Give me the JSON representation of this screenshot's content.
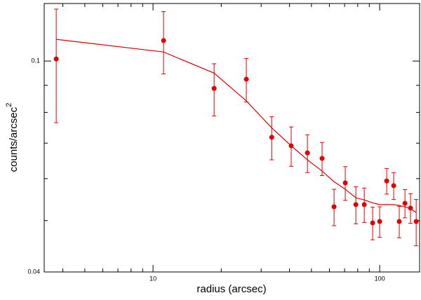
{
  "chart_data": {
    "type": "scatter",
    "xlabel": "radius (arcsec)",
    "ylabel": {
      "text": "counts/arcsec",
      "superscript": "2"
    },
    "color": "#e00000",
    "x": [
      3.74,
      11.13,
      18.6,
      25.8,
      33.4,
      40.7,
      48.0,
      55.7,
      62.9,
      70.5,
      78.5,
      85.5,
      93.1,
      100,
      107.4,
      115.3,
      122,
      129.3,
      136.8,
      144.9
    ],
    "values": [
      0.1009,
      0.1093,
      0.0888,
      0.0924,
      0.0718,
      0.0692,
      0.0671,
      0.0655,
      0.0531,
      0.0589,
      0.0536,
      0.0536,
      0.0495,
      0.0498,
      0.0594,
      0.0582,
      0.0498,
      0.0539,
      0.0528,
      0.0498
    ],
    "errors": [
      0.0244,
      0.0147,
      0.01,
      0.0087,
      0.0067,
      0.0059,
      0.0055,
      0.0047,
      0.0042,
      0.0043,
      0.0043,
      0.004,
      0.0035,
      0.0033,
      0.0033,
      0.0034,
      0.0034,
      0.0033,
      0.0034,
      0.005
    ],
    "model_values": [
      0.1099,
      0.104,
      0.0949,
      0.0841,
      0.0748,
      0.0692,
      0.0651,
      0.062,
      0.0592,
      0.0573,
      0.0552,
      0.0547,
      0.054,
      0.0536,
      0.0536,
      0.0536,
      0.0534,
      0.0531,
      0.0526,
      0.0518
    ],
    "xlog": true,
    "ylog": true,
    "xlim": [
      3.31,
      150
    ],
    "ylim": [
      0.04,
      0.1284
    ],
    "xticks": [
      10,
      100
    ],
    "xticks_minor": [
      4,
      5,
      6,
      7,
      8,
      9,
      20,
      30,
      40,
      50,
      60,
      70,
      80,
      90
    ],
    "yticks": [
      0.04,
      0.1
    ],
    "yticks_minor": [
      0.05,
      0.06,
      0.07,
      0.08,
      0.09
    ]
  }
}
